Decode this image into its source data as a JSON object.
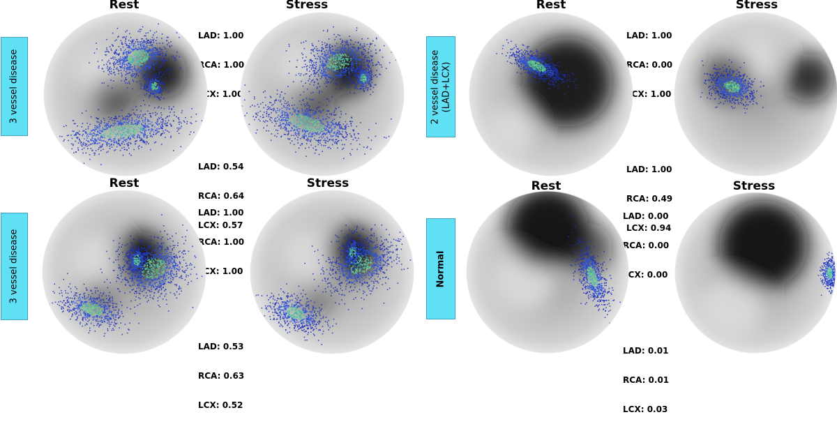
{
  "rows": [
    {
      "label": "3 vessel disease",
      "rest_title": "Rest",
      "stress_title": "Stress",
      "rest_scores": {
        "LAD": "1.00",
        "RCA": "1.00",
        "LCX": "1.00"
      },
      "stress_scores": {
        "LAD": "0.54",
        "RCA": "0.64",
        "LCX": "0.57"
      }
    },
    {
      "label": "3 vessel disease",
      "rest_title": "Rest",
      "stress_title": "Stress",
      "rest_scores": {
        "LAD": "1.00",
        "RCA": "1.00",
        "LCX": "1.00"
      },
      "stress_scores": {
        "LAD": "0.53",
        "RCA": "0.63",
        "LCX": "0.52"
      }
    },
    {
      "label": "2 vessel disease\n(LAD+LCX)",
      "rest_title": "Rest",
      "stress_title": "Stress",
      "rest_scores": {
        "LAD": "1.00",
        "RCA": "0.00",
        "LCX": "1.00"
      },
      "stress_scores": {
        "LAD": "1.00",
        "RCA": "0.49",
        "LCX": "0.94"
      }
    },
    {
      "label": "Normal",
      "rest_title": "Rest",
      "stress_title": "Stress",
      "rest_scores": {
        "LAD": "0.00",
        "RCA": "0.00",
        "LCX": "0.00"
      },
      "stress_scores": {
        "LAD": "0.01",
        "RCA": "0.01",
        "LCX": "0.03"
      }
    }
  ],
  "score_keys": [
    "LAD",
    "RCA",
    "LCX"
  ]
}
